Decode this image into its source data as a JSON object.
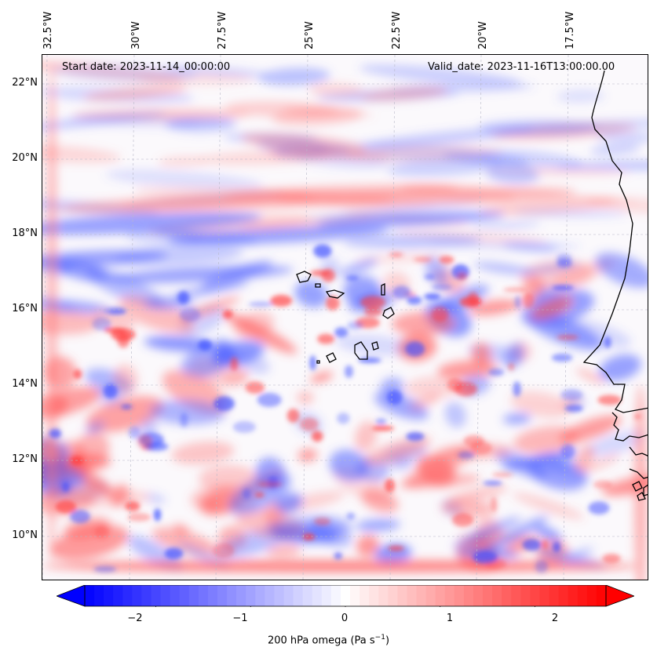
{
  "map": {
    "start_date": "Start date: 2023-11-14_00:00:00",
    "valid_date": "Valid_date: 2023-11-16T13:00:00.00",
    "lon_ticks": [
      "32.5°W",
      "30°W",
      "27.5°W",
      "25°W",
      "22.5°W",
      "20°W",
      "17.5°W"
    ],
    "lat_ticks": [
      "22°N",
      "20°N",
      "18°N",
      "16°N",
      "14°N",
      "12°N",
      "10°N"
    ],
    "field": "omega",
    "pressure_level_hpa": 200
  },
  "colorbar": {
    "ticks": [
      "−2",
      "−1",
      "0",
      "1",
      "2"
    ],
    "tick_values": [
      -2,
      -1,
      0,
      1,
      2
    ],
    "range": [
      -2.75,
      2.75
    ],
    "label_main": "200 hPa omega (Pa s",
    "label_exp": "−1",
    "label_close": ")",
    "color_min": "#0000ff",
    "color_mid": "#ffffff",
    "color_max": "#ff0000",
    "extend": "both"
  },
  "colors": {
    "coastline": "#000000",
    "gridline": "#b0b0b0",
    "background": "#ffffff"
  }
}
